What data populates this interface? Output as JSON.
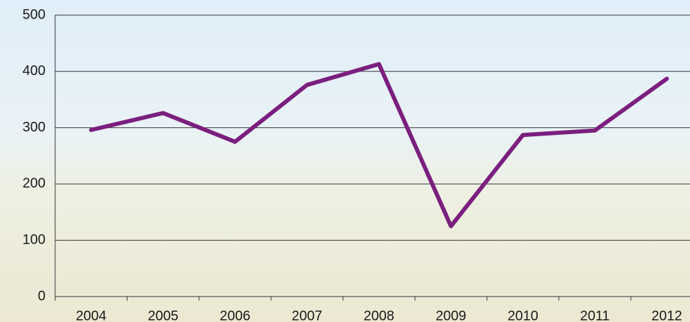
{
  "chart_data": {
    "type": "line",
    "categories": [
      "2004",
      "2005",
      "2006",
      "2007",
      "2008",
      "2009",
      "2010",
      "2011",
      "2012"
    ],
    "values": [
      296,
      326,
      275,
      376,
      413,
      125,
      287,
      295,
      387
    ],
    "color": "#7b1f7f",
    "ylim": [
      0,
      500
    ],
    "yticks": [
      0,
      100,
      200,
      300,
      400,
      500
    ],
    "grid": true
  }
}
